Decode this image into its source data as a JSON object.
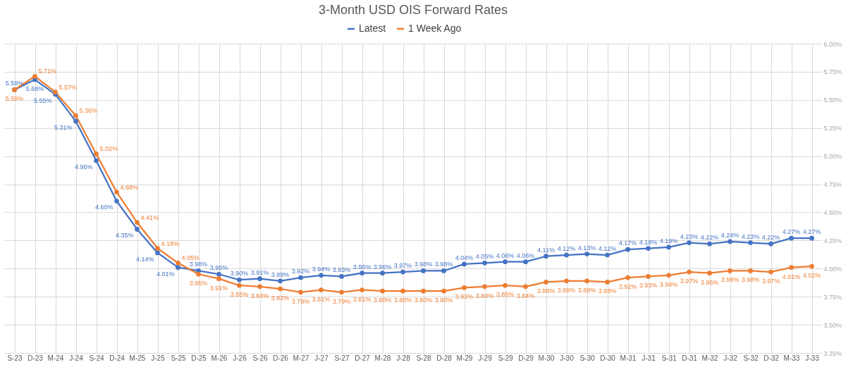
{
  "chart_data": {
    "type": "line",
    "title": "3-Month USD OIS Forward Rates",
    "categories": [
      "S-23",
      "D-23",
      "M-24",
      "J-24",
      "S-24",
      "D-24",
      "M-25",
      "J-25",
      "S-25",
      "D-25",
      "M-26",
      "J-26",
      "S-26",
      "D-26",
      "M-27",
      "J-27",
      "S-27",
      "D-27",
      "M-28",
      "J-28",
      "S-28",
      "D-28",
      "M-29",
      "J-29",
      "S-29",
      "D-29",
      "M-30",
      "J-30",
      "S-30",
      "D-30",
      "M-31",
      "J-31",
      "S-31",
      "D-31",
      "M-32",
      "J-32",
      "S-32",
      "D-32",
      "M-33",
      "J-33"
    ],
    "series": [
      {
        "name": "Latest",
        "color": "#4472c4",
        "values": [
          5.59,
          5.68,
          5.55,
          5.31,
          4.96,
          4.6,
          4.35,
          4.14,
          4.01,
          3.98,
          3.95,
          3.9,
          3.91,
          3.89,
          3.92,
          3.94,
          3.93,
          3.96,
          3.96,
          3.97,
          3.98,
          3.98,
          4.04,
          4.05,
          4.06,
          4.06,
          4.11,
          4.12,
          4.13,
          4.12,
          4.17,
          4.18,
          4.19,
          4.23,
          4.22,
          4.24,
          4.23,
          4.22,
          4.27,
          4.27
        ],
        "value_labels": [
          "5.59%",
          "5.68%",
          "5.55%",
          "5.31%",
          "4.96%",
          "4.60%",
          "4.35%",
          "4.14%",
          "4.01%",
          "3.98%",
          "3.95%",
          "3.90%",
          "3.91%",
          "3.89%",
          "3.92%",
          "3.94%",
          "3.93%",
          "3.96%",
          "3.96%",
          "3.97%",
          "3.98%",
          "3.98%",
          "4.04%",
          "4.05%",
          "4.06%",
          "4.06%",
          "4.11%",
          "4.12%",
          "4.13%",
          "4.12%",
          "4.17%",
          "4.18%",
          "4.19%",
          "4.23%",
          "4.22%",
          "4.24%",
          "4.23%",
          "4.22%",
          "4.27%",
          "4.27%"
        ]
      },
      {
        "name": "1 Week Ago",
        "color": "#ed7d31",
        "values": [
          5.59,
          5.71,
          5.57,
          5.36,
          5.02,
          4.68,
          4.41,
          4.18,
          4.05,
          3.95,
          3.91,
          3.85,
          3.84,
          3.82,
          3.79,
          3.81,
          3.79,
          3.81,
          3.8,
          3.8,
          3.8,
          3.8,
          3.83,
          3.84,
          3.85,
          3.84,
          3.88,
          3.89,
          3.89,
          3.88,
          3.92,
          3.93,
          3.94,
          3.97,
          3.96,
          3.98,
          3.98,
          3.97,
          4.01,
          4.02
        ],
        "value_labels": [
          "5.59%",
          "5.71%",
          "5.57%",
          "5.36%",
          "5.02%",
          "4.68%",
          "4.41%",
          "4.18%",
          "4.05%",
          "3.95%",
          "3.91%",
          "3.85%",
          "3.84%",
          "3.82%",
          "3.79%",
          "3.81%",
          "3.79%",
          "3.81%",
          "3.80%",
          "3.80%",
          "3.80%",
          "3.80%",
          "3.83%",
          "3.84%",
          "3.85%",
          "3.84%",
          "3.88%",
          "3.89%",
          "3.89%",
          "3.88%",
          "3.92%",
          "3.93%",
          "3.94%",
          "3.97%",
          "3.96%",
          "3.98%",
          "3.98%",
          "3.97%",
          "4.01%",
          "4.02%"
        ]
      }
    ],
    "ylim": [
      3.25,
      6.0
    ],
    "yticks": [
      {
        "value": 3.25,
        "label": "3.25%"
      },
      {
        "value": 3.5,
        "label": "3.50%"
      },
      {
        "value": 3.75,
        "label": "3.75%"
      },
      {
        "value": 4.0,
        "label": "4.00%"
      },
      {
        "value": 4.25,
        "label": "4.25%"
      },
      {
        "value": 4.5,
        "label": "4.50%"
      },
      {
        "value": 4.75,
        "label": "4.75%"
      },
      {
        "value": 5.0,
        "label": "5.00%"
      },
      {
        "value": 5.25,
        "label": "5.25%"
      },
      {
        "value": 5.5,
        "label": "5.50%"
      },
      {
        "value": 5.75,
        "label": "5.75%"
      },
      {
        "value": 6.0,
        "label": "6.00%"
      }
    ],
    "grid": true,
    "legend": "top",
    "marker": "circle",
    "line_style": "solid"
  }
}
